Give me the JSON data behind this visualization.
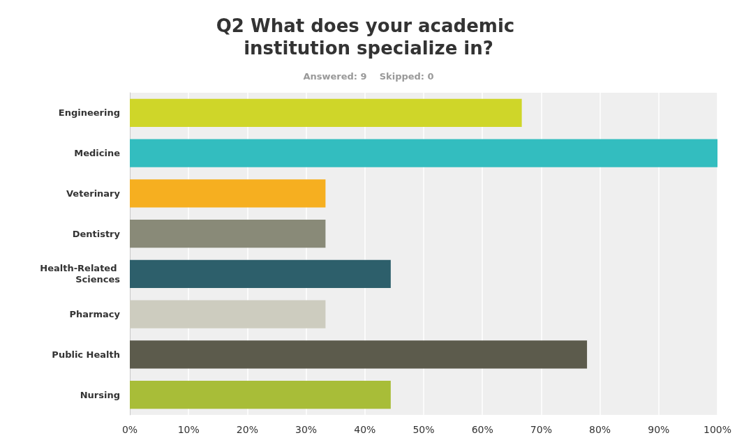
{
  "chart_data": {
    "type": "bar",
    "orientation": "horizontal",
    "title": "Q2 What does your academic institution specialize in?",
    "subtitle": "Answered: 9    Skipped: 0",
    "categories": [
      "Engineering",
      "Medicine",
      "Veterinary",
      "Dentistry",
      "Health-Related Sciences",
      "Pharmacy",
      "Public Health",
      "Nursing"
    ],
    "values": [
      66.7,
      100,
      33.3,
      33.3,
      44.4,
      33.3,
      77.8,
      44.4
    ],
    "colors": [
      "#cfd629",
      "#33bdbf",
      "#f6af20",
      "#898a78",
      "#2d5f6b",
      "#cdccbf",
      "#5c5b4c",
      "#a8bd38"
    ],
    "xlim": [
      0,
      100
    ],
    "xticks": [
      {
        "value": 0,
        "label": "0%"
      },
      {
        "value": 10,
        "label": "10%"
      },
      {
        "value": 20,
        "label": "20%"
      },
      {
        "value": 30,
        "label": "30%"
      },
      {
        "value": 40,
        "label": "40%"
      },
      {
        "value": 50,
        "label": "50%"
      },
      {
        "value": 60,
        "label": "60%"
      },
      {
        "value": 70,
        "label": "70%"
      },
      {
        "value": 80,
        "label": "80%"
      },
      {
        "value": 90,
        "label": "90%"
      },
      {
        "value": 100,
        "label": "100%"
      }
    ],
    "grid": "x"
  }
}
